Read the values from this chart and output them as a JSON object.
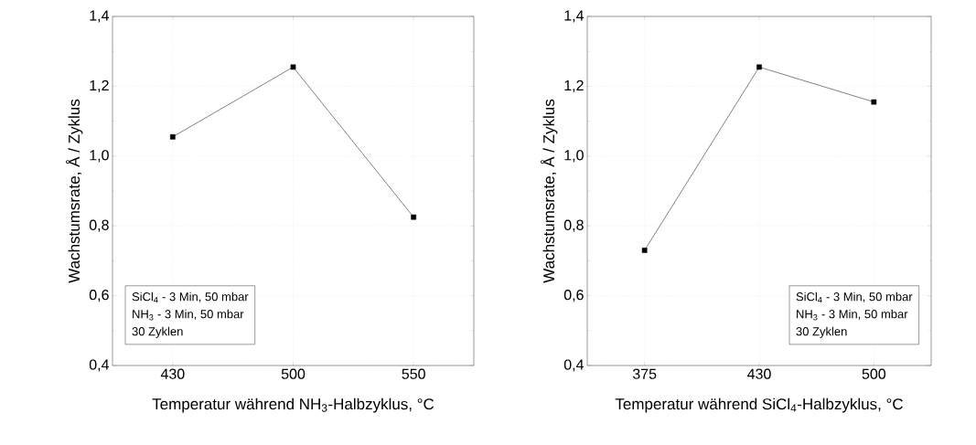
{
  "chart_data": [
    {
      "type": "line",
      "categories": [
        "430",
        "500",
        "550"
      ],
      "values": [
        1.055,
        1.255,
        0.825
      ],
      "color": "#000000",
      "marker": "square",
      "line_style": "solid",
      "grid": true,
      "xlabel": "Temperatur während NH$_{3}$-Halbzyklus, °C",
      "ylabel": "Wachstumsrate, Å / Zyklus",
      "ylim": [
        0.4,
        1.4
      ],
      "yticks": [
        {
          "value": 0.4,
          "label": "0,4"
        },
        {
          "value": 0.6,
          "label": "0,6"
        },
        {
          "value": 0.8,
          "label": "0,8"
        },
        {
          "value": 1.0,
          "label": "1,0"
        },
        {
          "value": 1.2,
          "label": "1,2"
        },
        {
          "value": 1.4,
          "label": "1,4"
        }
      ],
      "annotations": [
        "SiCl$_{4}$ - 3 Min, 50 mbar",
        "NH$_{3}$ - 3 Min, 50 mbar",
        "30 Zyklen"
      ]
    },
    {
      "type": "line",
      "categories": [
        "375",
        "430",
        "500"
      ],
      "values": [
        0.73,
        1.255,
        1.155
      ],
      "color": "#000000",
      "marker": "square",
      "line_style": "solid",
      "grid": true,
      "xlabel": "Temperatur während SiCl$_{4}$-Halbzyklus, °C",
      "ylabel": "Wachstumsrate, Å / Zyklus",
      "ylim": [
        0.4,
        1.4
      ],
      "yticks": [
        {
          "value": 0.4,
          "label": "0,4"
        },
        {
          "value": 0.6,
          "label": "0,6"
        },
        {
          "value": 0.8,
          "label": "0,8"
        },
        {
          "value": 1.0,
          "label": "1,0"
        },
        {
          "value": 1.2,
          "label": "1,2"
        },
        {
          "value": 1.4,
          "label": "1,4"
        }
      ],
      "annotations": [
        "SiCl$_{4}$ - 3 Min, 50 mbar",
        "NH$_{3}$ - 3 Min, 50 mbar",
        "30 Zyklen"
      ]
    }
  ]
}
